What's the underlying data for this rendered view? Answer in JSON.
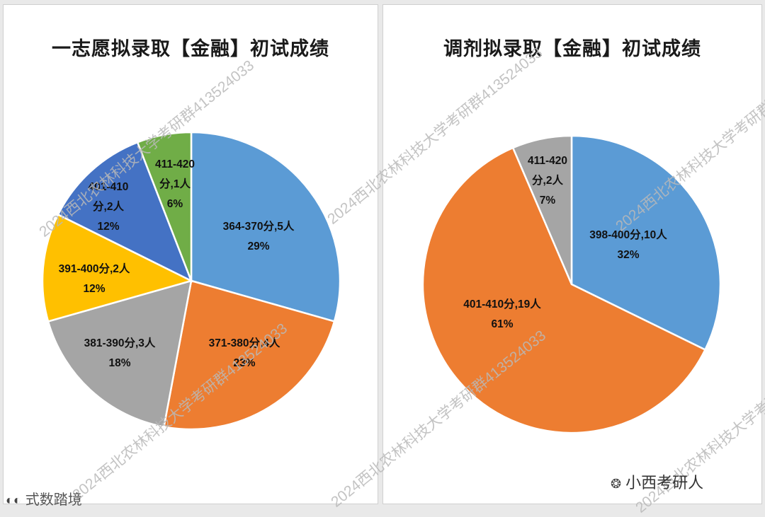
{
  "chart_data": [
    {
      "type": "pie",
      "title": "一志愿拟录取【金融】初试成绩",
      "slices": [
        {
          "label": "364-370分,5人",
          "pct": "29%",
          "value": 5,
          "color": "#5b9bd5"
        },
        {
          "label": "371-380分,4人",
          "pct": "23%",
          "value": 4,
          "color": "#ed7d31"
        },
        {
          "label": "381-390分,3人",
          "pct": "18%",
          "value": 3,
          "color": "#a5a5a5"
        },
        {
          "label": "391-400分,2人",
          "pct": "12%",
          "value": 2,
          "color": "#ffc000"
        },
        {
          "label": "401-410分,2人",
          "pct": "12%",
          "value": 2,
          "color": "#4472c4"
        },
        {
          "label": "411-420分,1人",
          "pct": "6%",
          "value": 1,
          "color": "#70ad47"
        }
      ]
    },
    {
      "type": "pie",
      "title": "调剂拟录取【金融】初试成绩",
      "slices": [
        {
          "label": "398-400分,10人",
          "pct": "32%",
          "value": 10,
          "color": "#5b9bd5"
        },
        {
          "label": "401-410分,19人",
          "pct": "61%",
          "value": 19,
          "color": "#ed7d31"
        },
        {
          "label": "411-420分,2人",
          "pct": "7%",
          "value": 2,
          "color": "#a5a5a5"
        }
      ]
    }
  ],
  "watermark_text": "2024西北农林科技大学考研群413524033",
  "footer": {
    "left_brand": "式数踏境",
    "right_brand": "小西考研人"
  }
}
